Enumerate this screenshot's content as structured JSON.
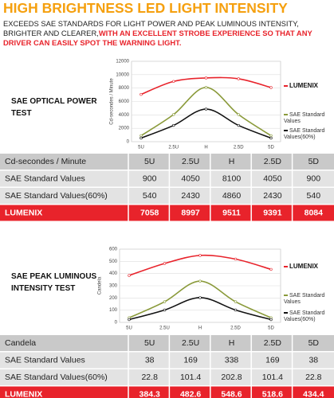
{
  "header": {
    "title": "HIGH BRIGHTNESS LED LIGHT INTENSITY",
    "text": "EXCEEDS SAE STANDARDS FOR LIGHT POWER AND PEAK LUMINOUS INTENSITY, BRIGHTER AND CLEARER,",
    "highlight": "WITH AN EXCELLENT STROBE EXPERIENCE SO THAT ANY DRIVER CAN EASILY SPOT THE WARNING LIGHT."
  },
  "chart_data": [
    {
      "type": "line",
      "title": "SAE OPTICAL POWER TEST",
      "y_label": "Cd-secondes / Minute",
      "categories": [
        "5U",
        "2.5U",
        "H",
        "2.5D",
        "5D"
      ],
      "series": [
        {
          "name": "LUMENIX",
          "color": "#e8232b",
          "values": [
            7058,
            8997,
            9511,
            9391,
            8084
          ]
        },
        {
          "name": "SAE Standard Values",
          "color": "#8a9a3a",
          "values": [
            900,
            4050,
            8100,
            4050,
            900
          ]
        },
        {
          "name": "SAE Standard Values(60%)",
          "color": "#111111",
          "values": [
            540,
            2430,
            4860,
            2430,
            540
          ]
        }
      ],
      "ylim": [
        0,
        12000
      ],
      "yticks": [
        0,
        2000,
        4000,
        6000,
        8000,
        10000,
        12000
      ],
      "grid": true
    },
    {
      "type": "line",
      "title": "SAE PEAK LUMINOUS INTENSITY TEST",
      "y_label": "Candela",
      "categories": [
        "5U",
        "2.5U",
        "H",
        "2.5D",
        "5D"
      ],
      "series": [
        {
          "name": "LUMENIX",
          "color": "#e8232b",
          "values": [
            384.3,
            482.6,
            548.6,
            518.6,
            434.4
          ]
        },
        {
          "name": "SAE Standard Values",
          "color": "#8a9a3a",
          "values": [
            38,
            169,
            338,
            169,
            38
          ]
        },
        {
          "name": "SAE Standard Values(60%)",
          "color": "#111111",
          "values": [
            22.8,
            101.4,
            202.8,
            101.4,
            22.8
          ]
        }
      ],
      "ylim": [
        0,
        600
      ],
      "yticks": [
        0,
        100,
        200,
        300,
        400,
        500,
        600
      ],
      "grid": true
    }
  ]
}
